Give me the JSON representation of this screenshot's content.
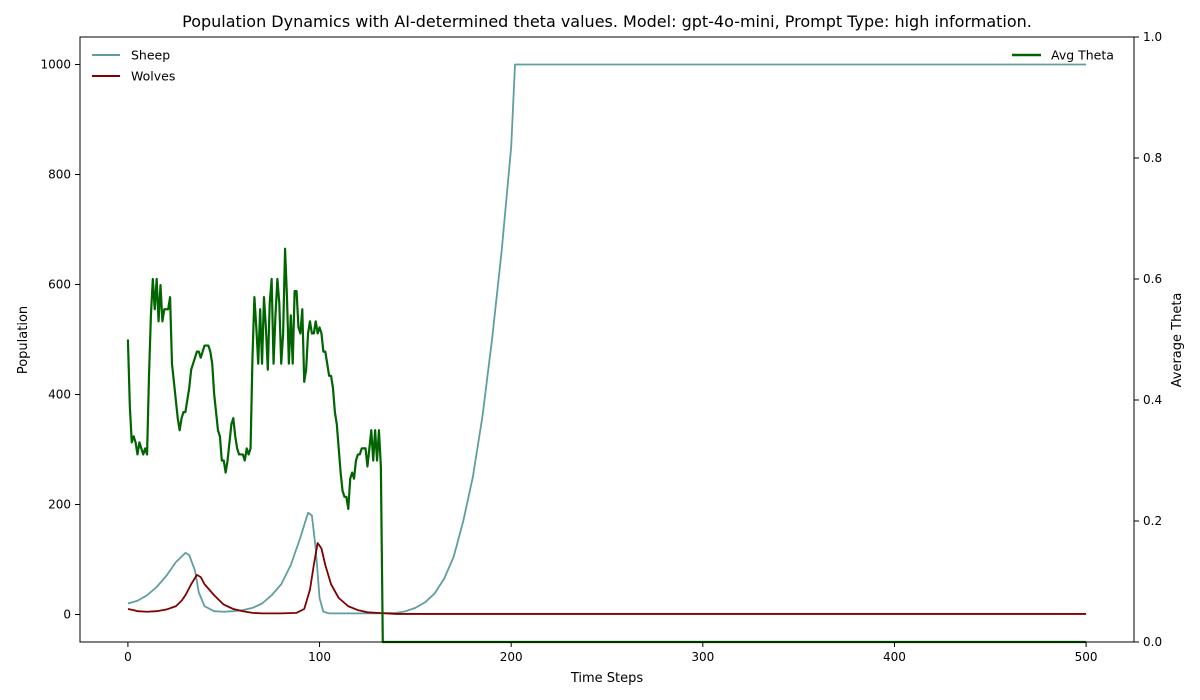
{
  "chart_data": {
    "type": "line",
    "title": "Population Dynamics with AI-determined theta values. Model: gpt-4o-mini, Prompt Type: high information.",
    "xlabel": "Time Steps",
    "ylabel": "Population",
    "y2label": "Average Theta",
    "xlim": [
      -25,
      525
    ],
    "ylim": [
      -50,
      1050
    ],
    "y2lim": [
      0,
      1.0
    ],
    "xticks": [
      "0",
      "100",
      "200",
      "300",
      "400",
      "500"
    ],
    "yticks": [
      "0",
      "200",
      "400",
      "600",
      "800",
      "1000"
    ],
    "y2ticks": [
      "0.0",
      "0.2",
      "0.4",
      "0.6",
      "0.8",
      "1.0"
    ],
    "grid": false,
    "legend_left": "top-left",
    "legend_right": "top-right",
    "series": [
      {
        "name": "Sheep",
        "axis": "left",
        "color": "#5f9ea0",
        "points": [
          [
            0,
            20
          ],
          [
            5,
            25
          ],
          [
            10,
            35
          ],
          [
            15,
            50
          ],
          [
            20,
            70
          ],
          [
            25,
            95
          ],
          [
            30,
            112
          ],
          [
            32,
            108
          ],
          [
            35,
            80
          ],
          [
            37,
            40
          ],
          [
            40,
            15
          ],
          [
            45,
            6
          ],
          [
            50,
            5
          ],
          [
            55,
            6
          ],
          [
            60,
            8
          ],
          [
            65,
            12
          ],
          [
            70,
            20
          ],
          [
            75,
            35
          ],
          [
            80,
            55
          ],
          [
            85,
            90
          ],
          [
            90,
            140
          ],
          [
            94,
            185
          ],
          [
            96,
            180
          ],
          [
            98,
            120
          ],
          [
            100,
            30
          ],
          [
            102,
            5
          ],
          [
            105,
            2
          ],
          [
            110,
            2
          ],
          [
            120,
            2
          ],
          [
            130,
            2
          ],
          [
            140,
            3
          ],
          [
            145,
            6
          ],
          [
            150,
            12
          ],
          [
            155,
            22
          ],
          [
            160,
            38
          ],
          [
            165,
            65
          ],
          [
            170,
            105
          ],
          [
            175,
            170
          ],
          [
            180,
            250
          ],
          [
            185,
            360
          ],
          [
            190,
            500
          ],
          [
            195,
            660
          ],
          [
            200,
            850
          ],
          [
            202,
            1000
          ],
          [
            210,
            1000
          ],
          [
            300,
            1000
          ],
          [
            400,
            1000
          ],
          [
            500,
            1000
          ]
        ]
      },
      {
        "name": "Wolves",
        "axis": "left",
        "color": "#800000",
        "points": [
          [
            0,
            10
          ],
          [
            3,
            8
          ],
          [
            5,
            6
          ],
          [
            10,
            5
          ],
          [
            15,
            6
          ],
          [
            20,
            9
          ],
          [
            25,
            15
          ],
          [
            28,
            25
          ],
          [
            30,
            35
          ],
          [
            33,
            55
          ],
          [
            36,
            72
          ],
          [
            38,
            68
          ],
          [
            40,
            55
          ],
          [
            45,
            35
          ],
          [
            50,
            18
          ],
          [
            55,
            10
          ],
          [
            60,
            6
          ],
          [
            65,
            3
          ],
          [
            70,
            2
          ],
          [
            80,
            2
          ],
          [
            88,
            3
          ],
          [
            92,
            10
          ],
          [
            95,
            45
          ],
          [
            97,
            90
          ],
          [
            99,
            130
          ],
          [
            101,
            120
          ],
          [
            103,
            90
          ],
          [
            106,
            55
          ],
          [
            110,
            30
          ],
          [
            115,
            15
          ],
          [
            120,
            8
          ],
          [
            125,
            4
          ],
          [
            130,
            3
          ],
          [
            140,
            1
          ],
          [
            200,
            1
          ],
          [
            300,
            1
          ],
          [
            400,
            1
          ],
          [
            500,
            1
          ]
        ]
      },
      {
        "name": "Avg Theta",
        "axis": "right",
        "color": "#006400",
        "points": [
          [
            0,
            0.5
          ],
          [
            1,
            0.39
          ],
          [
            2,
            0.33
          ],
          [
            3,
            0.34
          ],
          [
            4,
            0.33
          ],
          [
            5,
            0.31
          ],
          [
            6,
            0.33
          ],
          [
            7,
            0.32
          ],
          [
            8,
            0.31
          ],
          [
            9,
            0.32
          ],
          [
            10,
            0.31
          ],
          [
            11,
            0.44
          ],
          [
            12,
            0.54
          ],
          [
            13,
            0.6
          ],
          [
            14,
            0.55
          ],
          [
            15,
            0.6
          ],
          [
            16,
            0.53
          ],
          [
            17,
            0.59
          ],
          [
            18,
            0.53
          ],
          [
            19,
            0.55
          ],
          [
            20,
            0.55
          ],
          [
            21,
            0.55
          ],
          [
            22,
            0.57
          ],
          [
            23,
            0.46
          ],
          [
            24,
            0.43
          ],
          [
            25,
            0.4
          ],
          [
            26,
            0.37
          ],
          [
            27,
            0.35
          ],
          [
            28,
            0.37
          ],
          [
            29,
            0.38
          ],
          [
            30,
            0.38
          ],
          [
            31,
            0.4
          ],
          [
            32,
            0.42
          ],
          [
            33,
            0.45
          ],
          [
            34,
            0.46
          ],
          [
            35,
            0.47
          ],
          [
            36,
            0.48
          ],
          [
            37,
            0.48
          ],
          [
            38,
            0.47
          ],
          [
            39,
            0.48
          ],
          [
            40,
            0.49
          ],
          [
            41,
            0.49
          ],
          [
            42,
            0.49
          ],
          [
            43,
            0.48
          ],
          [
            44,
            0.46
          ],
          [
            45,
            0.41
          ],
          [
            46,
            0.38
          ],
          [
            47,
            0.35
          ],
          [
            48,
            0.34
          ],
          [
            49,
            0.3
          ],
          [
            50,
            0.3
          ],
          [
            51,
            0.28
          ],
          [
            52,
            0.3
          ],
          [
            53,
            0.33
          ],
          [
            54,
            0.36
          ],
          [
            55,
            0.37
          ],
          [
            56,
            0.34
          ],
          [
            57,
            0.32
          ],
          [
            58,
            0.31
          ],
          [
            59,
            0.31
          ],
          [
            60,
            0.31
          ],
          [
            61,
            0.3
          ],
          [
            62,
            0.32
          ],
          [
            63,
            0.31
          ],
          [
            64,
            0.32
          ],
          [
            65,
            0.47
          ],
          [
            66,
            0.57
          ],
          [
            67,
            0.52
          ],
          [
            68,
            0.46
          ],
          [
            69,
            0.55
          ],
          [
            70,
            0.46
          ],
          [
            71,
            0.57
          ],
          [
            72,
            0.52
          ],
          [
            73,
            0.45
          ],
          [
            74,
            0.56
          ],
          [
            75,
            0.6
          ],
          [
            76,
            0.46
          ],
          [
            77,
            0.54
          ],
          [
            78,
            0.6
          ],
          [
            79,
            0.56
          ],
          [
            80,
            0.46
          ],
          [
            81,
            0.51
          ],
          [
            82,
            0.65
          ],
          [
            83,
            0.57
          ],
          [
            84,
            0.46
          ],
          [
            85,
            0.54
          ],
          [
            86,
            0.46
          ],
          [
            87,
            0.58
          ],
          [
            88,
            0.58
          ],
          [
            89,
            0.52
          ],
          [
            90,
            0.51
          ],
          [
            91,
            0.55
          ],
          [
            92,
            0.43
          ],
          [
            93,
            0.45
          ],
          [
            94,
            0.51
          ],
          [
            95,
            0.53
          ],
          [
            96,
            0.51
          ],
          [
            97,
            0.51
          ],
          [
            98,
            0.53
          ],
          [
            99,
            0.51
          ],
          [
            100,
            0.52
          ],
          [
            101,
            0.51
          ],
          [
            102,
            0.48
          ],
          [
            103,
            0.48
          ],
          [
            104,
            0.46
          ],
          [
            105,
            0.44
          ],
          [
            106,
            0.44
          ],
          [
            107,
            0.42
          ],
          [
            108,
            0.38
          ],
          [
            109,
            0.36
          ],
          [
            110,
            0.32
          ],
          [
            111,
            0.28
          ],
          [
            112,
            0.25
          ],
          [
            113,
            0.24
          ],
          [
            114,
            0.24
          ],
          [
            115,
            0.22
          ],
          [
            116,
            0.27
          ],
          [
            117,
            0.28
          ],
          [
            118,
            0.27
          ],
          [
            119,
            0.3
          ],
          [
            120,
            0.31
          ],
          [
            121,
            0.31
          ],
          [
            122,
            0.32
          ],
          [
            123,
            0.32
          ],
          [
            124,
            0.32
          ],
          [
            125,
            0.29
          ],
          [
            126,
            0.32
          ],
          [
            127,
            0.35
          ],
          [
            128,
            0.3
          ],
          [
            129,
            0.35
          ],
          [
            130,
            0.3
          ],
          [
            131,
            0.35
          ],
          [
            132,
            0.29
          ],
          [
            133,
            0.0
          ],
          [
            200,
            0.0
          ],
          [
            300,
            0.0
          ],
          [
            400,
            0.0
          ],
          [
            500,
            0.0
          ]
        ]
      }
    ]
  }
}
